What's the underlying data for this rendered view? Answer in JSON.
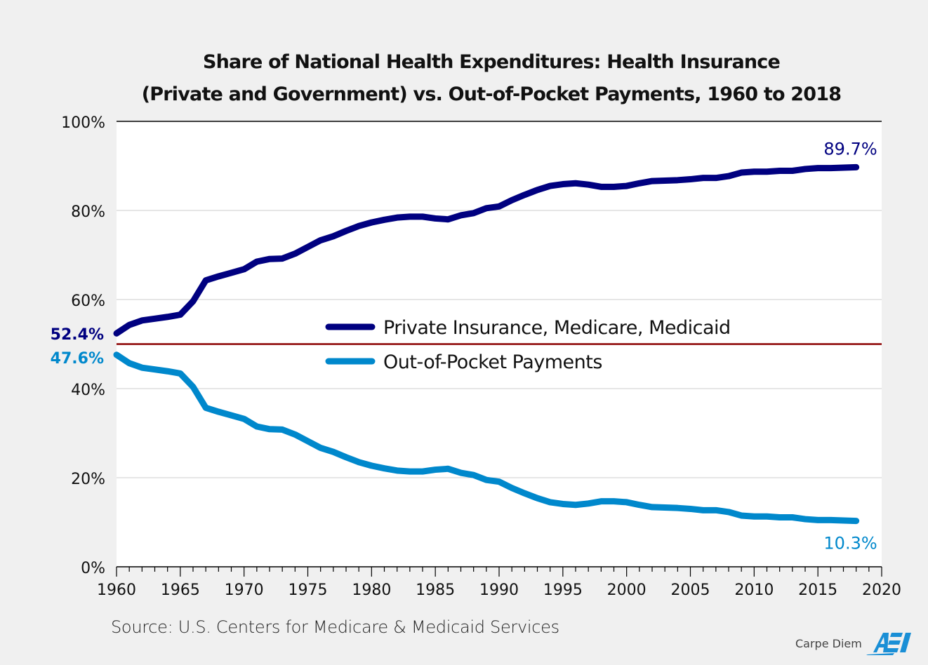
{
  "title_line1": "Share of National Health Expenditures: Health Insurance",
  "title_line2": "(Private and Government) vs. Out-of-Pocket Payments, 1960 to 2018",
  "source": "Source: U.S. Centers for Medicare & Medicaid Services",
  "brand": {
    "text": "Carpe Diem",
    "logo": "AEI"
  },
  "colors": {
    "private": "#000080",
    "oop": "#0088cc",
    "midline": "#8b0000",
    "grid": "#cccccc"
  },
  "chart_data": {
    "type": "line",
    "title": "Share of National Health Expenditures: Health Insurance (Private and Government) vs. Out-of-Pocket Payments, 1960 to 2018",
    "xlabel": "",
    "ylabel": "",
    "xlim": [
      1960,
      2020
    ],
    "ylim": [
      0,
      100
    ],
    "x_ticks": [
      "1960",
      "1965",
      "1970",
      "1975",
      "1980",
      "1985",
      "1990",
      "1995",
      "2000",
      "2005",
      "2010",
      "2015",
      "2020"
    ],
    "y_ticks": [
      "0%",
      "20%",
      "40%",
      "60%",
      "80%",
      "100%"
    ],
    "grid": "horizontal",
    "reference_line": {
      "value": 50,
      "color": "#8b0000"
    },
    "legend_position": "center",
    "x": [
      1960,
      1961,
      1962,
      1963,
      1964,
      1965,
      1966,
      1967,
      1968,
      1969,
      1970,
      1971,
      1972,
      1973,
      1974,
      1975,
      1976,
      1977,
      1978,
      1979,
      1980,
      1981,
      1982,
      1983,
      1984,
      1985,
      1986,
      1987,
      1988,
      1989,
      1990,
      1991,
      1992,
      1993,
      1994,
      1995,
      1996,
      1997,
      1998,
      1999,
      2000,
      2001,
      2002,
      2003,
      2004,
      2005,
      2006,
      2007,
      2008,
      2009,
      2010,
      2011,
      2012,
      2013,
      2014,
      2015,
      2016,
      2017,
      2018
    ],
    "series": [
      {
        "name": "Private Insurance, Medicare, Medicaid",
        "color": "#000080",
        "values": [
          52.4,
          54.3,
          55.3,
          55.7,
          56.1,
          56.6,
          59.6,
          64.3,
          65.2,
          66.0,
          66.8,
          68.5,
          69.1,
          69.2,
          70.3,
          71.8,
          73.3,
          74.2,
          75.4,
          76.5,
          77.3,
          77.9,
          78.4,
          78.6,
          78.6,
          78.2,
          78.0,
          78.9,
          79.4,
          80.5,
          80.9,
          82.3,
          83.5,
          84.6,
          85.5,
          85.9,
          86.1,
          85.8,
          85.3,
          85.3,
          85.5,
          86.1,
          86.6,
          86.7,
          86.8,
          87.0,
          87.3,
          87.3,
          87.7,
          88.5,
          88.7,
          88.7,
          88.9,
          88.9,
          89.3,
          89.5,
          89.5,
          89.6,
          89.7
        ],
        "start_label": "52.4%",
        "end_label": "89.7%"
      },
      {
        "name": "Out-of-Pocket Payments",
        "color": "#0088cc",
        "values": [
          47.6,
          45.7,
          44.7,
          44.3,
          43.9,
          43.4,
          40.4,
          35.7,
          34.8,
          34.0,
          33.2,
          31.5,
          30.9,
          30.8,
          29.7,
          28.2,
          26.7,
          25.8,
          24.6,
          23.5,
          22.7,
          22.1,
          21.6,
          21.4,
          21.4,
          21.8,
          22.0,
          21.1,
          20.6,
          19.5,
          19.1,
          17.7,
          16.5,
          15.4,
          14.5,
          14.1,
          13.9,
          14.2,
          14.7,
          14.7,
          14.5,
          13.9,
          13.4,
          13.3,
          13.2,
          13.0,
          12.7,
          12.7,
          12.3,
          11.5,
          11.3,
          11.3,
          11.1,
          11.1,
          10.7,
          10.5,
          10.5,
          10.4,
          10.3
        ],
        "start_label": "47.6%",
        "end_label": "10.3%"
      }
    ]
  }
}
